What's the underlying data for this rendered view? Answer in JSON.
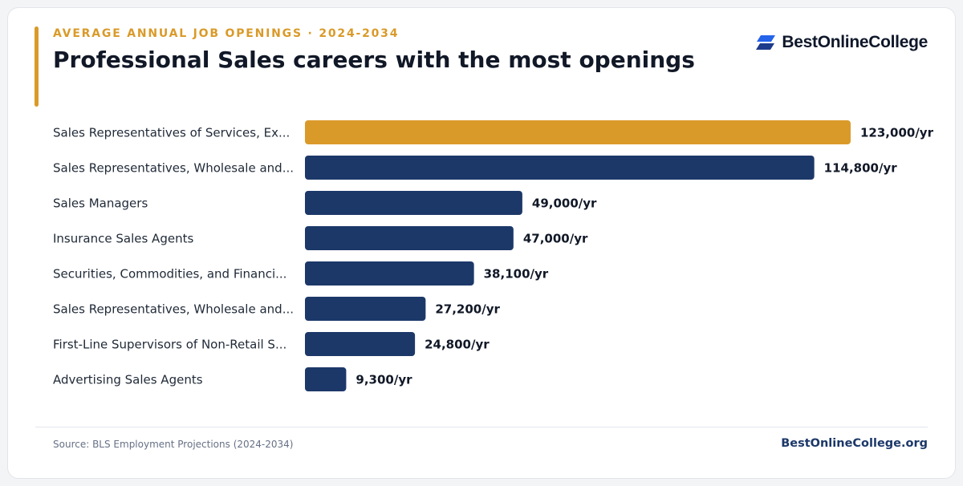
{
  "header": {
    "eyebrow": "AVERAGE ANNUAL JOB OPENINGS · 2024-2034",
    "title": "Professional Sales careers with the most openings"
  },
  "brand": {
    "name": "BestOnlineCollege",
    "icon": "brand-logo-icon"
  },
  "footer": {
    "source": "Source: BLS Employment Projections (2024-2034)",
    "site": "BestOnlineCollege.org"
  },
  "colors": {
    "highlight": "#da9a2a",
    "bar": "#1c3869",
    "accent": "#da9a2a",
    "logo": "#2563eb"
  },
  "chart_data": {
    "type": "bar",
    "orientation": "horizontal",
    "categories": [
      "Sales Representatives of Services, Ex...",
      "Sales Representatives, Wholesale and...",
      "Sales Managers",
      "Insurance Sales Agents",
      "Securities, Commodities, and Financi...",
      "Sales Representatives, Wholesale and...",
      "First-Line Supervisors of Non-Retail S...",
      "Advertising Sales Agents"
    ],
    "values": [
      123000,
      114800,
      49000,
      47000,
      38100,
      27200,
      24800,
      9300
    ],
    "value_labels": [
      "123,000/yr",
      "114,800/yr",
      "49,000/yr",
      "47,000/yr",
      "38,100/yr",
      "27,200/yr",
      "24,800/yr",
      "9,300/yr"
    ],
    "highlighted_index": 0,
    "xlim": [
      0,
      123000
    ],
    "grid": false,
    "legend": "none"
  }
}
